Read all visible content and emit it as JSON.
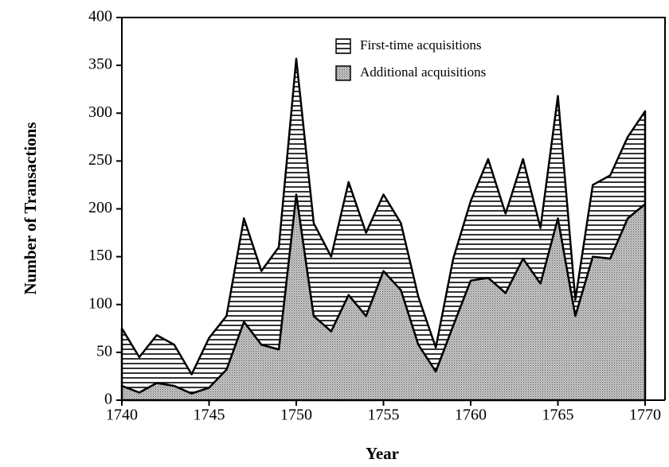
{
  "chart_data": {
    "type": "stacked-area",
    "xlabel": "Year",
    "ylabel": "Number of Transactions",
    "x": [
      1740,
      1741,
      1742,
      1743,
      1744,
      1745,
      1746,
      1747,
      1748,
      1749,
      1750,
      1751,
      1752,
      1753,
      1754,
      1755,
      1756,
      1757,
      1758,
      1759,
      1760,
      1761,
      1762,
      1763,
      1764,
      1765,
      1766,
      1767,
      1768,
      1769,
      1770
    ],
    "series": [
      {
        "name": "Additional acquisitions",
        "color": "#9a9a9a",
        "pattern": "dots",
        "values": [
          15,
          8,
          18,
          15,
          7,
          13,
          32,
          82,
          58,
          53,
          215,
          88,
          72,
          110,
          88,
          135,
          115,
          58,
          30,
          78,
          125,
          128,
          112,
          148,
          122,
          190,
          88,
          150,
          148,
          190,
          205
        ]
      },
      {
        "name": "First-time acquisitions",
        "color": "#000000",
        "pattern": "horizontal-lines",
        "values": [
          60,
          37,
          50,
          43,
          20,
          52,
          56,
          108,
          77,
          107,
          142,
          97,
          78,
          118,
          87,
          80,
          70,
          50,
          25,
          70,
          83,
          124,
          83,
          104,
          58,
          128,
          17,
          75,
          87,
          85,
          97
        ]
      }
    ],
    "xlim": [
      1740,
      1770
    ],
    "xticks": [
      1740,
      1745,
      1750,
      1755,
      1760,
      1765,
      1770
    ],
    "ylim": [
      0,
      400
    ],
    "yticks": [
      0,
      50,
      100,
      150,
      200,
      250,
      300,
      350,
      400
    ]
  }
}
